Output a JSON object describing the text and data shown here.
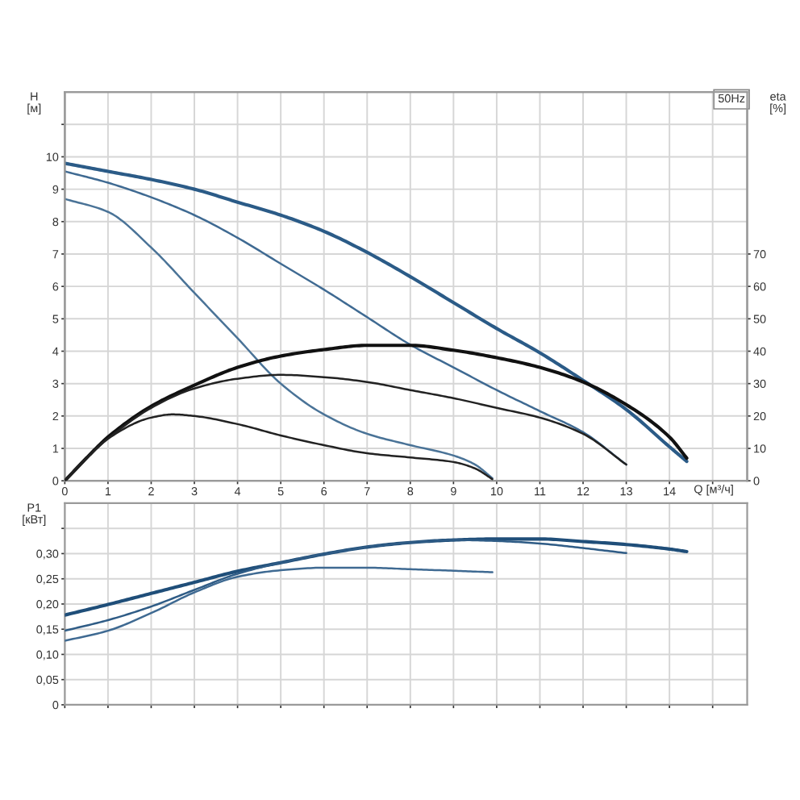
{
  "chart_data": [
    {
      "type": "line",
      "xlabel": "Q [м³/ч]",
      "ylabel": "H\n[м]",
      "y2label": "eta\n[%]",
      "annotations": [
        "50Hz"
      ],
      "xlim": [
        0,
        15.8
      ],
      "xticks": [
        0,
        1,
        2,
        3,
        4,
        5,
        6,
        7,
        8,
        9,
        10,
        11,
        12,
        13,
        14,
        {
          "value": 15,
          "label": null
        }
      ],
      "ylim": [
        0,
        12
      ],
      "yticks": [
        0,
        1,
        2,
        3,
        4,
        5,
        6,
        7,
        8,
        9,
        10,
        {
          "value": 11,
          "label": null
        }
      ],
      "y2lim": [
        0,
        120
      ],
      "y2ticks": [
        0,
        10,
        20,
        30,
        40,
        50,
        60,
        70
      ],
      "grid": true,
      "series": [
        {
          "color": "#2b5b87",
          "x": [
            0,
            1,
            2,
            3,
            4,
            5,
            6,
            7,
            8,
            9,
            10,
            11,
            12,
            13,
            14,
            14.4
          ],
          "values": [
            9.8,
            9.55,
            9.3,
            9.0,
            8.6,
            8.2,
            7.7,
            7.05,
            6.3,
            5.5,
            4.7,
            3.95,
            3.1,
            2.2,
            1.05,
            0.6
          ]
        },
        {
          "color": "#3f6a92",
          "x": [
            0,
            1,
            2,
            3,
            4,
            5,
            6,
            7,
            8,
            9,
            10,
            11,
            12,
            13
          ],
          "values": [
            9.55,
            9.2,
            8.75,
            8.2,
            7.5,
            6.7,
            5.9,
            5.05,
            4.2,
            3.5,
            2.8,
            2.15,
            1.5,
            0.5
          ]
        },
        {
          "color": "#4a7397",
          "x": [
            0,
            1,
            2,
            3,
            4,
            5,
            6,
            7,
            8,
            9,
            9.5,
            9.9
          ],
          "values": [
            8.7,
            8.3,
            7.2,
            5.8,
            4.4,
            3.0,
            2.05,
            1.45,
            1.1,
            0.78,
            0.5,
            0.08
          ]
        },
        {
          "color": "#111111",
          "axis": "y2",
          "x": [
            0,
            0.5,
            1,
            2,
            3,
            4,
            5,
            6,
            7,
            8,
            9,
            10,
            11,
            12,
            13,
            14,
            14.4
          ],
          "values": [
            0,
            7,
            13.5,
            23,
            29.5,
            35,
            38.5,
            40.5,
            41.8,
            41.8,
            40.3,
            38,
            35,
            30.5,
            23.5,
            13.5,
            7
          ]
        },
        {
          "color": "#222222",
          "axis": "y2",
          "x": [
            0,
            0.5,
            1,
            2,
            3,
            4,
            5,
            6,
            7,
            8,
            9,
            10,
            11,
            12,
            13
          ],
          "values": [
            0,
            7,
            13,
            22.5,
            28.5,
            31.5,
            32.7,
            32,
            30.5,
            28,
            25.5,
            22.5,
            19.5,
            14.5,
            5
          ]
        },
        {
          "color": "#222222",
          "axis": "y2",
          "x": [
            0,
            0.5,
            1,
            2,
            2.5,
            3,
            4,
            5,
            6,
            7,
            8,
            9,
            9.5,
            9.9
          ],
          "values": [
            0,
            7,
            13,
            19.5,
            20.5,
            20,
            17.5,
            14,
            11,
            8.5,
            7.2,
            5.8,
            3.8,
            0.5
          ]
        }
      ]
    },
    {
      "type": "line",
      "ylabel": "P1\n[кВт]",
      "xlim": [
        0,
        15.8
      ],
      "xticks": [
        0,
        1,
        2,
        3,
        4,
        5,
        6,
        7,
        8,
        9,
        10,
        11,
        12,
        13,
        14,
        {
          "value": 15,
          "label": null
        }
      ],
      "ylim": [
        0,
        0.4
      ],
      "yticks": [
        0,
        {
          "value": 0.05,
          "label": "0,05"
        },
        {
          "value": 0.1,
          "label": "0,10"
        },
        {
          "value": 0.15,
          "label": "0,15"
        },
        {
          "value": 0.2,
          "label": "0,20"
        },
        {
          "value": 0.25,
          "label": "0,25"
        },
        {
          "value": 0.3,
          "label": "0,30"
        },
        {
          "value": 0.35,
          "label": null
        }
      ],
      "tick_labels": "y",
      "grid": true,
      "series": [
        {
          "color": "#1f4e79",
          "x": [
            0,
            1,
            2,
            3,
            4,
            5,
            6,
            7,
            8,
            9,
            10,
            11,
            12,
            13,
            14,
            14.4
          ],
          "values": [
            0.178,
            0.199,
            0.221,
            0.243,
            0.265,
            0.282,
            0.299,
            0.313,
            0.322,
            0.327,
            0.329,
            0.329,
            0.324,
            0.318,
            0.309,
            0.304
          ]
        },
        {
          "color": "#2f5c86",
          "x": [
            0,
            1,
            2,
            3,
            4,
            5,
            6,
            7,
            8,
            9,
            10,
            11,
            12,
            13
          ],
          "values": [
            0.147,
            0.168,
            0.195,
            0.228,
            0.26,
            0.282,
            0.299,
            0.313,
            0.322,
            0.327,
            0.325,
            0.32,
            0.311,
            0.301
          ]
        },
        {
          "color": "#3f6a92",
          "x": [
            0,
            1,
            2,
            3,
            4,
            5,
            6,
            7,
            8,
            9,
            9.9
          ],
          "values": [
            0.127,
            0.147,
            0.182,
            0.223,
            0.254,
            0.267,
            0.272,
            0.272,
            0.269,
            0.266,
            0.263
          ]
        }
      ]
    }
  ]
}
